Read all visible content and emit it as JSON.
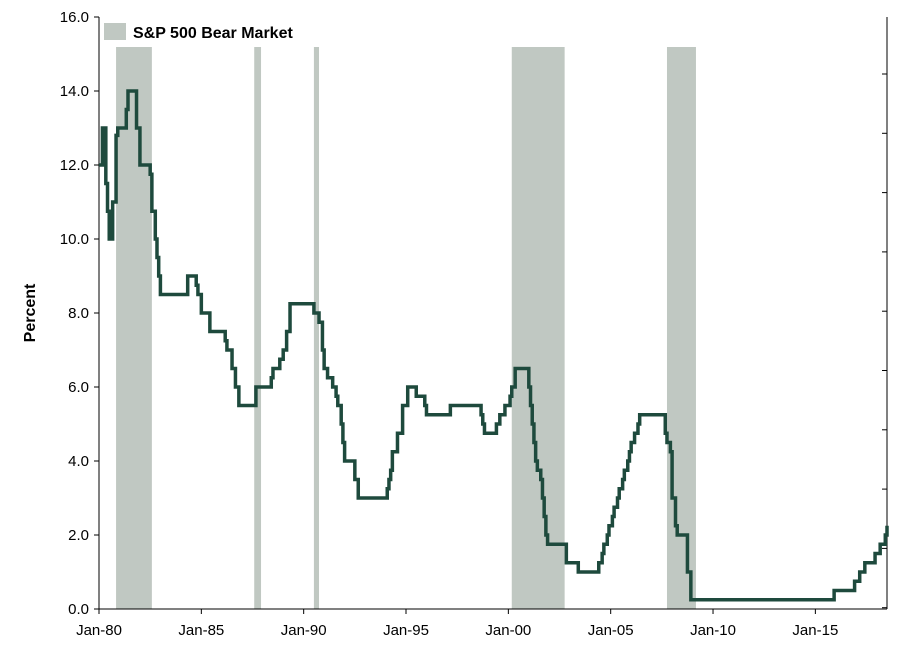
{
  "chart_data": {
    "type": "line",
    "ylabel": "Percent",
    "ylim": [
      0,
      16
    ],
    "xlim": [
      "1980-01",
      "2018-07"
    ],
    "y_ticks": [
      "0.0",
      "2.0",
      "4.0",
      "6.0",
      "8.0",
      "10.0",
      "12.0",
      "14.0",
      "16.0"
    ],
    "x_ticks": [
      {
        "label": "Jan-80",
        "date": "1980-01"
      },
      {
        "label": "Jan-85",
        "date": "1985-01"
      },
      {
        "label": "Jan-90",
        "date": "1990-01"
      },
      {
        "label": "Jan-95",
        "date": "1995-01"
      },
      {
        "label": "Jan-00",
        "date": "2000-01"
      },
      {
        "label": "Jan-05",
        "date": "2005-01"
      },
      {
        "label": "Jan-10",
        "date": "2010-01"
      },
      {
        "label": "Jan-15",
        "date": "2015-01"
      }
    ],
    "legend": {
      "label": "S&P 500 Bear Market",
      "placement": "top-left"
    },
    "bear_markets": [
      {
        "start": "1980-11",
        "end": "1982-08"
      },
      {
        "start": "1987-08",
        "end": "1987-12"
      },
      {
        "start": "1990-07",
        "end": "1990-10"
      },
      {
        "start": "2000-03",
        "end": "2002-10"
      },
      {
        "start": "2007-10",
        "end": "2009-03"
      }
    ],
    "series": [
      {
        "color": "#1e4a3d",
        "shade_color": "#c0c8c2",
        "points": [
          [
            "1980-01",
            12.0
          ],
          [
            "1980-03",
            13.0
          ],
          [
            "1980-05",
            11.5
          ],
          [
            "1980-06",
            10.75
          ],
          [
            "1980-07",
            10.0
          ],
          [
            "1980-09",
            11.0
          ],
          [
            "1980-11",
            12.8
          ],
          [
            "1980-12",
            13.0
          ],
          [
            "1981-05",
            13.5
          ],
          [
            "1981-06",
            14.0
          ],
          [
            "1981-11",
            13.0
          ],
          [
            "1982-01",
            12.0
          ],
          [
            "1982-06",
            12.0
          ],
          [
            "1982-07",
            11.75
          ],
          [
            "1982-08",
            10.75
          ],
          [
            "1982-10",
            10.0
          ],
          [
            "1982-11",
            9.5
          ],
          [
            "1982-12",
            9.0
          ],
          [
            "1983-01",
            8.5
          ],
          [
            "1984-04",
            8.5
          ],
          [
            "1984-05",
            9.0
          ],
          [
            "1984-10",
            8.75
          ],
          [
            "1984-11",
            8.5
          ],
          [
            "1985-01",
            8.0
          ],
          [
            "1985-06",
            7.5
          ],
          [
            "1986-03",
            7.25
          ],
          [
            "1986-04",
            7.0
          ],
          [
            "1986-07",
            6.5
          ],
          [
            "1986-09",
            6.0
          ],
          [
            "1986-11",
            5.5
          ],
          [
            "1987-09",
            6.0
          ],
          [
            "1988-06",
            6.25
          ],
          [
            "1988-07",
            6.5
          ],
          [
            "1988-11",
            6.75
          ],
          [
            "1989-01",
            7.0
          ],
          [
            "1989-02",
            7.0
          ],
          [
            "1989-03",
            7.5
          ],
          [
            "1989-05",
            8.25
          ],
          [
            "1990-06",
            8.25
          ],
          [
            "1990-07",
            8.0
          ],
          [
            "1990-10",
            7.75
          ],
          [
            "1990-12",
            7.0
          ],
          [
            "1991-01",
            6.5
          ],
          [
            "1991-03",
            6.25
          ],
          [
            "1991-06",
            6.0
          ],
          [
            "1991-08",
            5.75
          ],
          [
            "1991-09",
            5.5
          ],
          [
            "1991-11",
            5.0
          ],
          [
            "1991-12",
            4.5
          ],
          [
            "1992-01",
            4.0
          ],
          [
            "1992-07",
            3.5
          ],
          [
            "1992-09",
            3.0
          ],
          [
            "1993-12",
            3.0
          ],
          [
            "1994-02",
            3.25
          ],
          [
            "1994-03",
            3.5
          ],
          [
            "1994-04",
            3.75
          ],
          [
            "1994-05",
            4.25
          ],
          [
            "1994-08",
            4.75
          ],
          [
            "1994-11",
            5.5
          ],
          [
            "1995-02",
            6.0
          ],
          [
            "1995-07",
            5.75
          ],
          [
            "1995-12",
            5.5
          ],
          [
            "1996-01",
            5.25
          ],
          [
            "1997-03",
            5.5
          ],
          [
            "1998-09",
            5.25
          ],
          [
            "1998-10",
            5.0
          ],
          [
            "1998-11",
            4.75
          ],
          [
            "1999-06",
            5.0
          ],
          [
            "1999-08",
            5.25
          ],
          [
            "1999-11",
            5.5
          ],
          [
            "2000-02",
            5.75
          ],
          [
            "2000-03",
            6.0
          ],
          [
            "2000-05",
            6.5
          ],
          [
            "2001-01",
            6.0
          ],
          [
            "2001-02",
            5.5
          ],
          [
            "2001-03",
            5.0
          ],
          [
            "2001-04",
            4.5
          ],
          [
            "2001-05",
            4.0
          ],
          [
            "2001-06",
            3.75
          ],
          [
            "2001-08",
            3.5
          ],
          [
            "2001-09",
            3.0
          ],
          [
            "2001-10",
            2.5
          ],
          [
            "2001-11",
            2.0
          ],
          [
            "2001-12",
            1.75
          ],
          [
            "2002-11",
            1.25
          ],
          [
            "2003-06",
            1.0
          ],
          [
            "2004-06",
            1.25
          ],
          [
            "2004-08",
            1.5
          ],
          [
            "2004-09",
            1.75
          ],
          [
            "2004-11",
            2.0
          ],
          [
            "2004-12",
            2.25
          ],
          [
            "2005-02",
            2.5
          ],
          [
            "2005-03",
            2.75
          ],
          [
            "2005-05",
            3.0
          ],
          [
            "2005-06",
            3.25
          ],
          [
            "2005-08",
            3.5
          ],
          [
            "2005-09",
            3.75
          ],
          [
            "2005-11",
            4.0
          ],
          [
            "2005-12",
            4.25
          ],
          [
            "2006-01",
            4.5
          ],
          [
            "2006-03",
            4.75
          ],
          [
            "2006-05",
            5.0
          ],
          [
            "2006-06",
            5.25
          ],
          [
            "2007-09",
            4.75
          ],
          [
            "2007-10",
            4.5
          ],
          [
            "2007-12",
            4.25
          ],
          [
            "2008-01",
            3.0
          ],
          [
            "2008-03",
            2.25
          ],
          [
            "2008-04",
            2.0
          ],
          [
            "2008-10",
            1.0
          ],
          [
            "2008-12",
            0.25
          ],
          [
            "2015-12",
            0.5
          ],
          [
            "2016-12",
            0.75
          ],
          [
            "2017-03",
            1.0
          ],
          [
            "2017-06",
            1.25
          ],
          [
            "2017-12",
            1.5
          ],
          [
            "2018-03",
            1.75
          ],
          [
            "2018-06",
            2.0
          ],
          [
            "2018-07",
            2.25
          ]
        ]
      }
    ]
  }
}
